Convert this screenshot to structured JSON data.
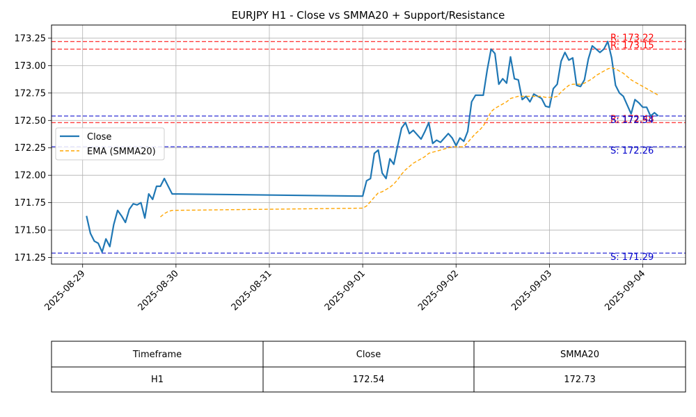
{
  "chart_data": {
    "type": "line",
    "title": "EURJPY H1 - Close vs SMMA20 + Support/Resistance",
    "xlabel": "",
    "ylabel": "",
    "x_ticks": [
      "2025-08-29",
      "2025-08-30",
      "2025-08-31",
      "2025-09-01",
      "2025-09-02",
      "2025-09-03",
      "2025-09-04"
    ],
    "y_ticks": [
      "171.25",
      "171.50",
      "171.75",
      "172.00",
      "172.25",
      "172.50",
      "172.75",
      "173.00",
      "173.25"
    ],
    "ylim": [
      171.19,
      173.37
    ],
    "xlim": [
      "2025-08-28T16:00",
      "2025-09-04T11:00"
    ],
    "grid": true,
    "legend_position": "upper-left",
    "colors": {
      "close": "#1f77b4",
      "ema": "#ffa500",
      "resistance": "#ff0000",
      "support": "#0000cc"
    },
    "series": [
      {
        "name": "Close",
        "style": "solid",
        "points": [
          [
            "2025-08-29T01:00",
            171.63
          ],
          [
            "2025-08-29T02:00",
            171.47
          ],
          [
            "2025-08-29T03:00",
            171.4
          ],
          [
            "2025-08-29T04:00",
            171.38
          ],
          [
            "2025-08-29T05:00",
            171.3
          ],
          [
            "2025-08-29T06:00",
            171.42
          ],
          [
            "2025-08-29T07:00",
            171.35
          ],
          [
            "2025-08-29T08:00",
            171.55
          ],
          [
            "2025-08-29T09:00",
            171.68
          ],
          [
            "2025-08-29T10:00",
            171.63
          ],
          [
            "2025-08-29T11:00",
            171.57
          ],
          [
            "2025-08-29T12:00",
            171.69
          ],
          [
            "2025-08-29T13:00",
            171.74
          ],
          [
            "2025-08-29T14:00",
            171.73
          ],
          [
            "2025-08-29T15:00",
            171.75
          ],
          [
            "2025-08-29T16:00",
            171.61
          ],
          [
            "2025-08-29T17:00",
            171.83
          ],
          [
            "2025-08-29T18:00",
            171.78
          ],
          [
            "2025-08-29T19:00",
            171.9
          ],
          [
            "2025-08-29T20:00",
            171.9
          ],
          [
            "2025-08-29T21:00",
            171.97
          ],
          [
            "2025-08-29T22:00",
            171.9
          ],
          [
            "2025-08-29T23:00",
            171.83
          ],
          [
            "2025-09-01T00:00",
            171.81
          ],
          [
            "2025-09-01T01:00",
            171.95
          ],
          [
            "2025-09-01T02:00",
            171.97
          ],
          [
            "2025-09-01T03:00",
            172.2
          ],
          [
            "2025-09-01T04:00",
            172.23
          ],
          [
            "2025-09-01T05:00",
            172.02
          ],
          [
            "2025-09-01T06:00",
            171.97
          ],
          [
            "2025-09-01T07:00",
            172.15
          ],
          [
            "2025-09-01T08:00",
            172.1
          ],
          [
            "2025-09-01T09:00",
            172.27
          ],
          [
            "2025-09-01T10:00",
            172.43
          ],
          [
            "2025-09-01T11:00",
            172.48
          ],
          [
            "2025-09-01T12:00",
            172.38
          ],
          [
            "2025-09-01T13:00",
            172.41
          ],
          [
            "2025-09-01T14:00",
            172.37
          ],
          [
            "2025-09-01T15:00",
            172.33
          ],
          [
            "2025-09-01T16:00",
            172.4
          ],
          [
            "2025-09-01T17:00",
            172.48
          ],
          [
            "2025-09-01T18:00",
            172.29
          ],
          [
            "2025-09-01T19:00",
            172.32
          ],
          [
            "2025-09-01T20:00",
            172.3
          ],
          [
            "2025-09-01T21:00",
            172.34
          ],
          [
            "2025-09-01T22:00",
            172.38
          ],
          [
            "2025-09-01T23:00",
            172.34
          ],
          [
            "2025-09-02T00:00",
            172.27
          ],
          [
            "2025-09-02T01:00",
            172.34
          ],
          [
            "2025-09-02T02:00",
            172.31
          ],
          [
            "2025-09-02T03:00",
            172.4
          ],
          [
            "2025-09-02T04:00",
            172.67
          ],
          [
            "2025-09-02T05:00",
            172.73
          ],
          [
            "2025-09-02T06:00",
            172.73
          ],
          [
            "2025-09-02T07:00",
            172.73
          ],
          [
            "2025-09-02T08:00",
            172.96
          ],
          [
            "2025-09-02T09:00",
            173.15
          ],
          [
            "2025-09-02T10:00",
            173.11
          ],
          [
            "2025-09-02T11:00",
            172.83
          ],
          [
            "2025-09-02T12:00",
            172.88
          ],
          [
            "2025-09-02T13:00",
            172.84
          ],
          [
            "2025-09-02T14:00",
            173.08
          ],
          [
            "2025-09-02T15:00",
            172.88
          ],
          [
            "2025-09-02T16:00",
            172.87
          ],
          [
            "2025-09-02T17:00",
            172.69
          ],
          [
            "2025-09-02T18:00",
            172.72
          ],
          [
            "2025-09-02T19:00",
            172.67
          ],
          [
            "2025-09-02T20:00",
            172.74
          ],
          [
            "2025-09-02T21:00",
            172.72
          ],
          [
            "2025-09-02T22:00",
            172.7
          ],
          [
            "2025-09-02T23:00",
            172.63
          ],
          [
            "2025-09-03T00:00",
            172.62
          ],
          [
            "2025-09-03T01:00",
            172.79
          ],
          [
            "2025-09-03T02:00",
            172.83
          ],
          [
            "2025-09-03T03:00",
            173.04
          ],
          [
            "2025-09-03T04:00",
            173.12
          ],
          [
            "2025-09-03T05:00",
            173.05
          ],
          [
            "2025-09-03T06:00",
            173.07
          ],
          [
            "2025-09-03T07:00",
            172.82
          ],
          [
            "2025-09-03T08:00",
            172.81
          ],
          [
            "2025-09-03T09:00",
            172.87
          ],
          [
            "2025-09-03T10:00",
            173.06
          ],
          [
            "2025-09-03T11:00",
            173.18
          ],
          [
            "2025-09-03T12:00",
            173.15
          ],
          [
            "2025-09-03T13:00",
            173.12
          ],
          [
            "2025-09-03T14:00",
            173.15
          ],
          [
            "2025-09-03T15:00",
            173.22
          ],
          [
            "2025-09-03T16:00",
            173.07
          ],
          [
            "2025-09-03T17:00",
            172.82
          ],
          [
            "2025-09-03T18:00",
            172.75
          ],
          [
            "2025-09-03T19:00",
            172.72
          ],
          [
            "2025-09-03T20:00",
            172.64
          ],
          [
            "2025-09-03T21:00",
            172.56
          ],
          [
            "2025-09-03T22:00",
            172.69
          ],
          [
            "2025-09-03T23:00",
            172.66
          ],
          [
            "2025-09-04T00:00",
            172.62
          ],
          [
            "2025-09-04T01:00",
            172.62
          ],
          [
            "2025-09-04T02:00",
            172.54
          ],
          [
            "2025-09-04T03:00",
            172.57
          ],
          [
            "2025-09-04T04:00",
            172.54
          ]
        ]
      },
      {
        "name": "EMA (SMMA20)",
        "style": "dashed",
        "points": [
          [
            "2025-08-29T20:00",
            171.62
          ],
          [
            "2025-08-29T21:00",
            171.65
          ],
          [
            "2025-08-29T22:00",
            171.67
          ],
          [
            "2025-08-29T23:00",
            171.68
          ],
          [
            "2025-09-01T00:00",
            171.7
          ],
          [
            "2025-09-01T01:00",
            171.72
          ],
          [
            "2025-09-01T02:00",
            171.76
          ],
          [
            "2025-09-01T03:00",
            171.8
          ],
          [
            "2025-09-01T04:00",
            171.84
          ],
          [
            "2025-09-01T05:00",
            171.85
          ],
          [
            "2025-09-01T06:00",
            171.87
          ],
          [
            "2025-09-01T07:00",
            171.89
          ],
          [
            "2025-09-01T08:00",
            171.92
          ],
          [
            "2025-09-01T09:00",
            171.96
          ],
          [
            "2025-09-01T10:00",
            172.01
          ],
          [
            "2025-09-01T11:00",
            172.05
          ],
          [
            "2025-09-01T12:00",
            172.08
          ],
          [
            "2025-09-01T13:00",
            172.11
          ],
          [
            "2025-09-01T14:00",
            172.13
          ],
          [
            "2025-09-01T15:00",
            172.15
          ],
          [
            "2025-09-01T16:00",
            172.17
          ],
          [
            "2025-09-01T17:00",
            172.2
          ],
          [
            "2025-09-01T18:00",
            172.21
          ],
          [
            "2025-09-01T19:00",
            172.22
          ],
          [
            "2025-09-01T20:00",
            172.23
          ],
          [
            "2025-09-01T21:00",
            172.24
          ],
          [
            "2025-09-01T22:00",
            172.25
          ],
          [
            "2025-09-01T23:00",
            172.26
          ],
          [
            "2025-09-02T00:00",
            172.26
          ],
          [
            "2025-09-02T01:00",
            172.26
          ],
          [
            "2025-09-02T02:00",
            172.26
          ],
          [
            "2025-09-02T03:00",
            172.3
          ],
          [
            "2025-09-02T04:00",
            172.34
          ],
          [
            "2025-09-02T05:00",
            172.38
          ],
          [
            "2025-09-02T06:00",
            172.41
          ],
          [
            "2025-09-02T07:00",
            172.45
          ],
          [
            "2025-09-02T08:00",
            172.51
          ],
          [
            "2025-09-02T09:00",
            172.58
          ],
          [
            "2025-09-02T10:00",
            172.61
          ],
          [
            "2025-09-02T11:00",
            172.63
          ],
          [
            "2025-09-02T12:00",
            172.65
          ],
          [
            "2025-09-02T13:00",
            172.67
          ],
          [
            "2025-09-02T14:00",
            172.7
          ],
          [
            "2025-09-02T15:00",
            172.71
          ],
          [
            "2025-09-02T16:00",
            172.72
          ],
          [
            "2025-09-02T17:00",
            172.72
          ],
          [
            "2025-09-02T18:00",
            172.72
          ],
          [
            "2025-09-02T19:00",
            172.72
          ],
          [
            "2025-09-02T20:00",
            172.72
          ],
          [
            "2025-09-02T21:00",
            172.72
          ],
          [
            "2025-09-02T22:00",
            172.72
          ],
          [
            "2025-09-02T23:00",
            172.71
          ],
          [
            "2025-09-03T00:00",
            172.71
          ],
          [
            "2025-09-03T01:00",
            172.71
          ],
          [
            "2025-09-03T02:00",
            172.72
          ],
          [
            "2025-09-03T03:00",
            172.76
          ],
          [
            "2025-09-03T04:00",
            172.79
          ],
          [
            "2025-09-03T05:00",
            172.82
          ],
          [
            "2025-09-03T06:00",
            172.83
          ],
          [
            "2025-09-03T07:00",
            172.83
          ],
          [
            "2025-09-03T08:00",
            172.83
          ],
          [
            "2025-09-03T09:00",
            172.84
          ],
          [
            "2025-09-03T10:00",
            172.86
          ],
          [
            "2025-09-03T11:00",
            172.88
          ],
          [
            "2025-09-03T12:00",
            172.91
          ],
          [
            "2025-09-03T13:00",
            172.93
          ],
          [
            "2025-09-03T14:00",
            172.95
          ],
          [
            "2025-09-03T15:00",
            172.97
          ],
          [
            "2025-09-03T16:00",
            172.98
          ],
          [
            "2025-09-03T17:00",
            172.97
          ],
          [
            "2025-09-03T18:00",
            172.95
          ],
          [
            "2025-09-03T19:00",
            172.93
          ],
          [
            "2025-09-03T20:00",
            172.9
          ],
          [
            "2025-09-03T21:00",
            172.87
          ],
          [
            "2025-09-03T22:00",
            172.85
          ],
          [
            "2025-09-03T23:00",
            172.83
          ],
          [
            "2025-09-04T00:00",
            172.81
          ],
          [
            "2025-09-04T01:00",
            172.79
          ],
          [
            "2025-09-04T02:00",
            172.77
          ],
          [
            "2025-09-04T03:00",
            172.75
          ],
          [
            "2025-09-04T04:00",
            172.73
          ]
        ]
      }
    ],
    "levels": [
      {
        "kind": "resistance",
        "value": 173.22,
        "label": "R: 173.22"
      },
      {
        "kind": "resistance",
        "value": 173.15,
        "label": "R: 173.15"
      },
      {
        "kind": "resistance",
        "value": 172.48,
        "label": "R: 172.48"
      },
      {
        "kind": "support",
        "value": 172.54,
        "label": "S: 172.54"
      },
      {
        "kind": "support",
        "value": 172.26,
        "label": "S: 172.26"
      },
      {
        "kind": "support",
        "value": 171.29,
        "label": "S: 171.29"
      }
    ],
    "table": {
      "headers": [
        "Timeframe",
        "Close",
        "SMMA20"
      ],
      "rows": [
        [
          "H1",
          "172.54",
          "172.73"
        ]
      ]
    }
  }
}
